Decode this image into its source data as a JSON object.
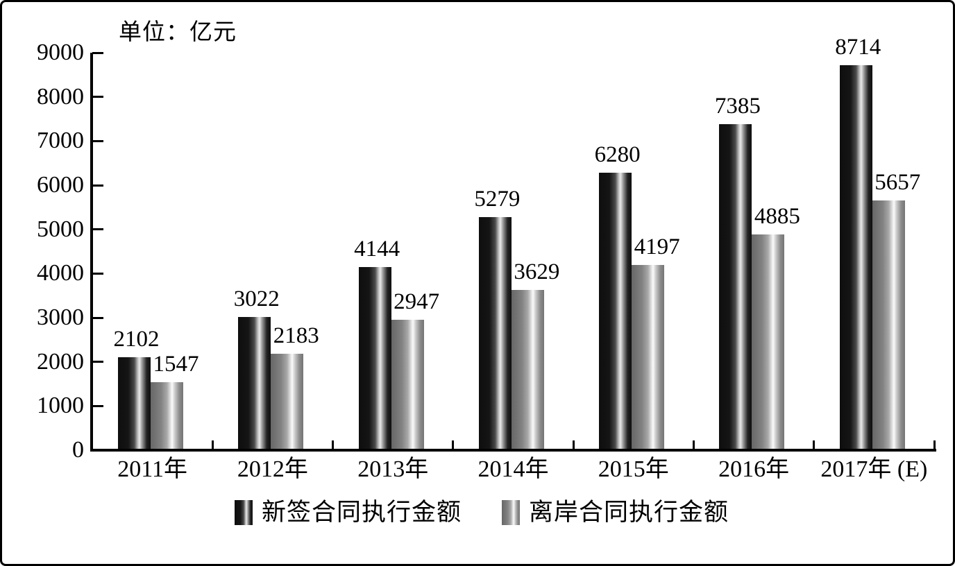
{
  "chart_data": {
    "type": "bar",
    "title": "",
    "unit_label": "单位：亿元",
    "categories": [
      "2011年",
      "2012年",
      "2013年",
      "2014年",
      "2015年",
      "2016年",
      "2017年 (E)"
    ],
    "series": [
      {
        "name": "新签合同执行金额",
        "values": [
          2102,
          3022,
          4144,
          5279,
          6280,
          7385,
          8714
        ]
      },
      {
        "name": "离岸合同执行金额",
        "values": [
          1547,
          2183,
          2947,
          3629,
          4197,
          4885,
          5657
        ]
      }
    ],
    "ylim": [
      0,
      9000
    ],
    "ytick_step": 1000,
    "ytick_labels": [
      "0",
      "1000",
      "2000",
      "3000",
      "4000",
      "5000",
      "6000",
      "7000",
      "8000",
      "9000"
    ],
    "grid": false,
    "legend_position": "bottom",
    "value_labels": true,
    "colors": {
      "bar_dark_base": "#0e0e0e",
      "bar_dark_highlight": "#e9e9e9",
      "bar_light_base": "#757575",
      "bar_light_highlight": "#fbfbfb",
      "axis": "#000000",
      "text": "#000000",
      "background": "#ffffff"
    }
  }
}
